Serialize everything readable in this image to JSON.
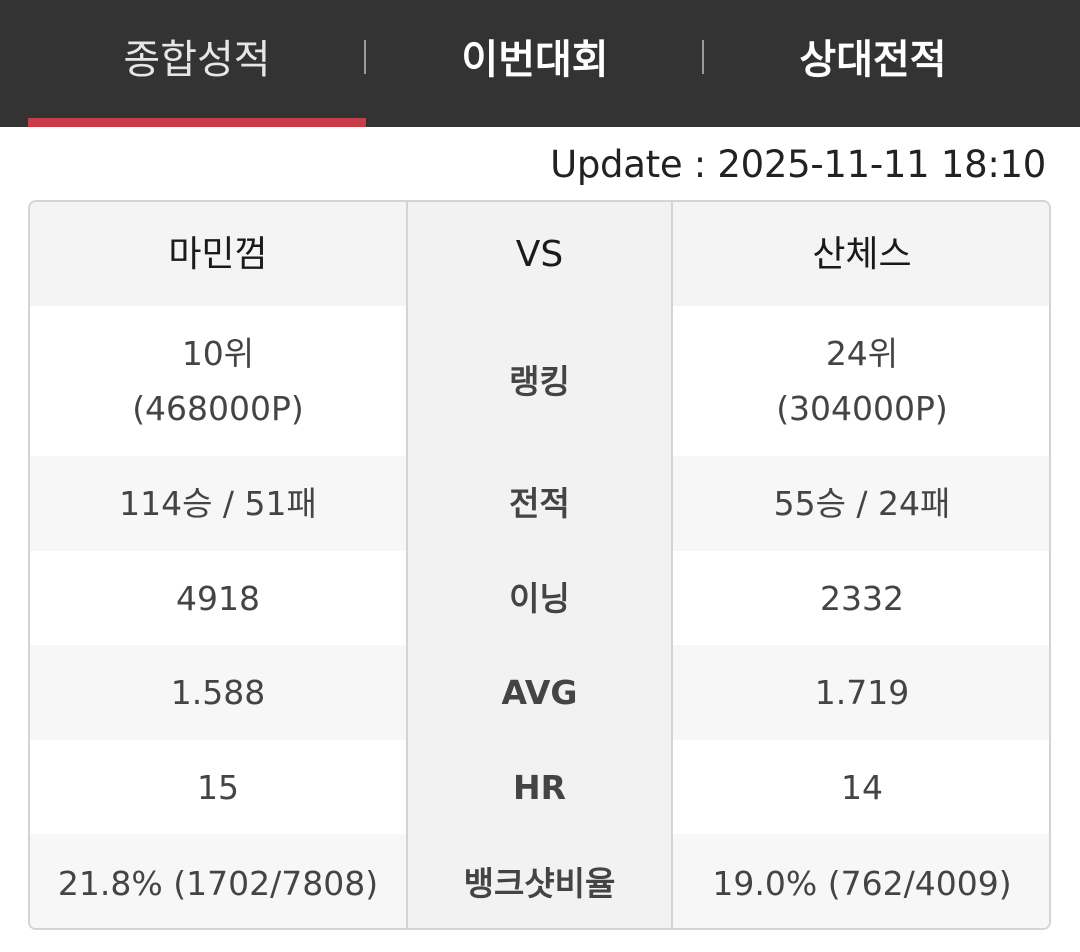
{
  "tabs": [
    {
      "label": "종합성적",
      "active": true
    },
    {
      "label": "이번대회",
      "active": false
    },
    {
      "label": "상대전적",
      "active": false
    }
  ],
  "colors": {
    "tab_bar": "#333333",
    "active_indicator": "#c83b49"
  },
  "update_text": "Update : 2025-11-11 18:10",
  "comparison": {
    "player_left": "마민껌",
    "vs_label": "VS",
    "player_right": "산체스",
    "rows": [
      {
        "label": "랭킹",
        "left": [
          "10위",
          "(468000P)"
        ],
        "right": [
          "24위",
          "(304000P)"
        ]
      },
      {
        "label": "전적",
        "left": [
          "114승 / 51패"
        ],
        "right": [
          "55승 / 24패"
        ]
      },
      {
        "label": "이닝",
        "left": [
          "4918"
        ],
        "right": [
          "2332"
        ]
      },
      {
        "label": "AVG",
        "left": [
          "1.588"
        ],
        "right": [
          "1.719"
        ]
      },
      {
        "label": "HR",
        "left": [
          "15"
        ],
        "right": [
          "14"
        ]
      },
      {
        "label": "뱅크샷비율",
        "left": [
          "21.8% (1702/7808)"
        ],
        "right": [
          "19.0% (762/4009)"
        ]
      }
    ]
  }
}
